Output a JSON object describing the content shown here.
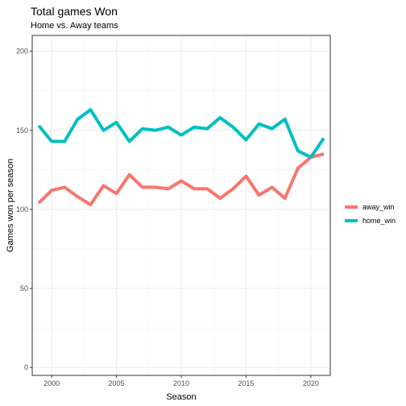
{
  "chart_data": {
    "type": "line",
    "title": "Total games Won",
    "subtitle": "Home vs. Away teams",
    "xlabel": "Season",
    "ylabel": "Games won per season",
    "xlim": [
      1998.5,
      2021.5
    ],
    "ylim": [
      -5,
      210
    ],
    "x_ticks": [
      2000,
      2005,
      2010,
      2015,
      2020
    ],
    "y_ticks": [
      0,
      50,
      100,
      150,
      200
    ],
    "x_minor_ticks": [
      1998.5,
      2002.5,
      2007.5,
      2012.5,
      2017.5
    ],
    "y_minor_ticks": [
      25,
      75,
      125,
      175
    ],
    "grid": true,
    "legend_position": "right",
    "x": [
      1999,
      2000,
      2001,
      2002,
      2003,
      2004,
      2005,
      2006,
      2007,
      2008,
      2009,
      2010,
      2011,
      2012,
      2013,
      2014,
      2015,
      2016,
      2017,
      2018,
      2019,
      2020,
      2021
    ],
    "series": [
      {
        "name": "away_win",
        "color": "#F8766D",
        "values": [
          104,
          112,
          114,
          108,
          103,
          115,
          110,
          122,
          114,
          114,
          113,
          118,
          113,
          113,
          107,
          113,
          121,
          109,
          114,
          107,
          126,
          133,
          135
        ]
      },
      {
        "name": "home_win",
        "color": "#00BFC4",
        "values": [
          153,
          143,
          143,
          157,
          163,
          150,
          155,
          143,
          151,
          150,
          152,
          147,
          152,
          151,
          158,
          152,
          144,
          154,
          151,
          157,
          137,
          133,
          145
        ]
      }
    ]
  }
}
